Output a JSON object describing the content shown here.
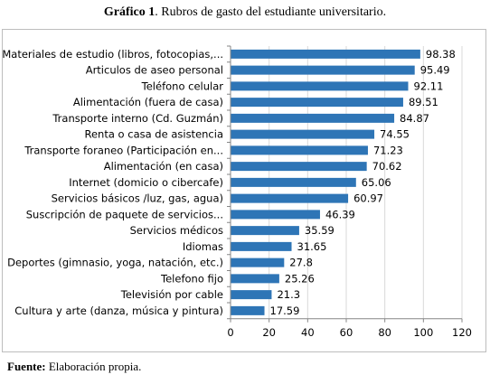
{
  "caption": {
    "prefix": "Gráfico 1",
    "text": ". Rubros de gasto del estudiante universitario."
  },
  "source": {
    "prefix": "Fuente:",
    "text": " Elaboración propia."
  },
  "colors": {
    "bar": "#2e75b6",
    "gridline": "#d9d9d9",
    "axis": "#868686"
  },
  "chart_data": {
    "type": "bar",
    "orientation": "horizontal",
    "categories": [
      "Materiales de estudio (libros, fotocopias,...",
      "Articulos de aseo personal",
      "Teléfono celular",
      "Alimentación (fuera de casa)",
      "Transporte interno (Cd. Guzmán)",
      "Renta o casa de asistencia",
      "Transporte foraneo (Participación en...",
      "Alimentación (en casa)",
      "Internet (domicio o cibercafe)",
      "Servicios básicos /luz, gas, agua)",
      "Suscripción de paquete de servicios...",
      "Servicios médicos",
      "Idiomas",
      "Deportes (gimnasio, yoga, natación, etc.)",
      "Telefono fijo",
      "Televisión por cable",
      "Cultura y arte (danza, música y pintura)"
    ],
    "values": [
      98.38,
      95.49,
      92.11,
      89.51,
      84.87,
      74.55,
      71.23,
      70.62,
      65.06,
      60.97,
      46.39,
      35.59,
      31.65,
      27.8,
      25.26,
      21.3,
      17.59
    ],
    "value_labels": [
      "98.38",
      "95.49",
      "92.11",
      "89.51",
      "84.87",
      "74.55",
      "71.23",
      "70.62",
      "65.06",
      "60.97",
      "46.39",
      "35.59",
      "31.65",
      "27.8",
      "25.26",
      "21.3",
      "17.59"
    ],
    "xlim": [
      0,
      120
    ],
    "xticks": [
      0,
      20,
      40,
      60,
      80,
      100,
      120
    ],
    "grid": true,
    "legend": "none"
  }
}
